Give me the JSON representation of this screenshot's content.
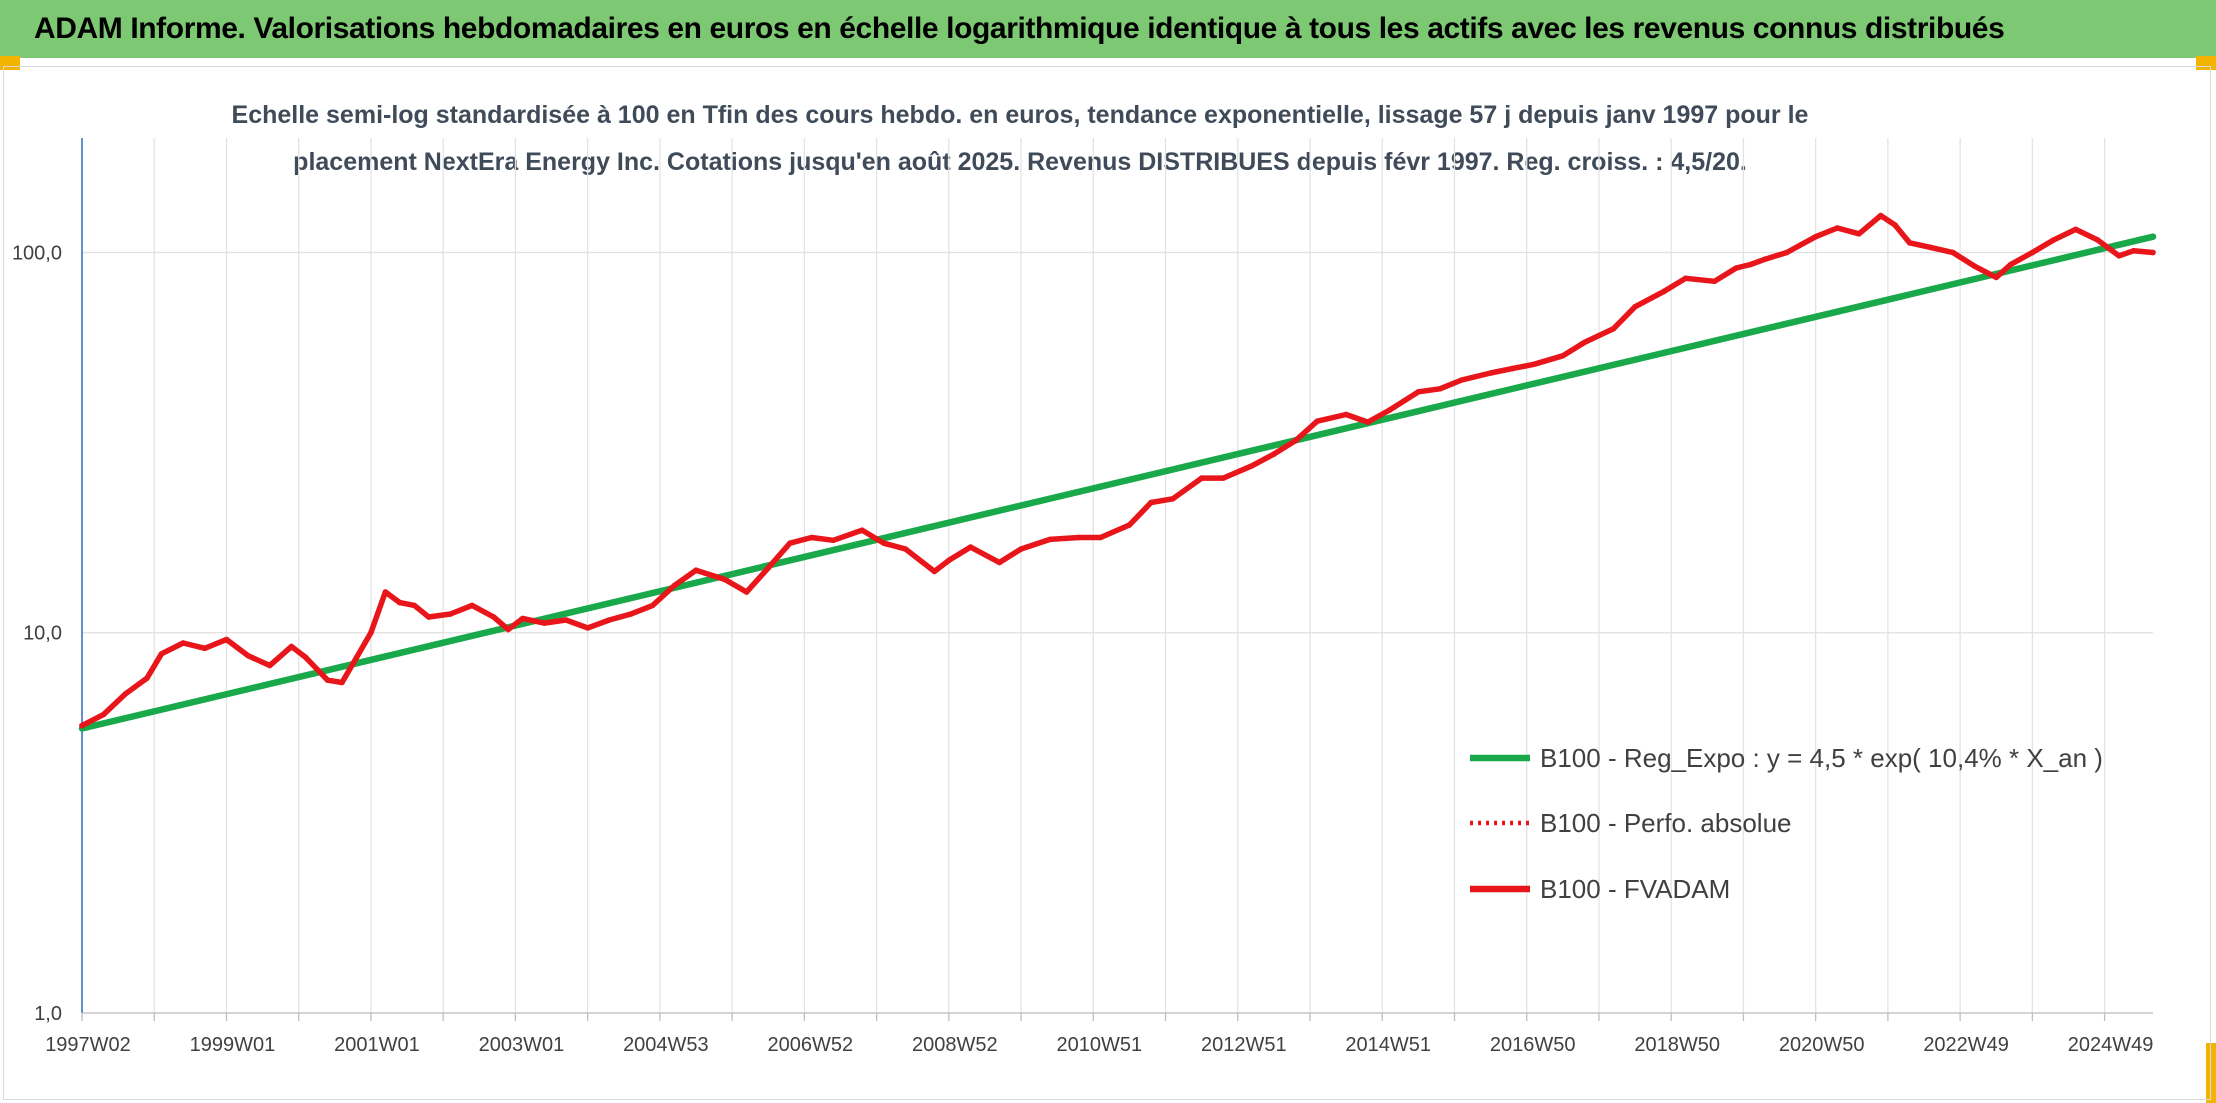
{
  "banner": {
    "title": "ADAM Informe. Valorisations hebdomadaires en euros en échelle logarithmique identique à tous les actifs avec les revenus connus distribués",
    "color": "#7dc872"
  },
  "chart_data": {
    "type": "line",
    "title_line1": "Echelle semi-log standardisée à 100 en Tfin des cours hebdo. en euros, tendance exponentielle, lissage 57 j depuis janv 1997 pour le",
    "title_line2": "placement NextEra Energy Inc. Cotations jusqu'en août 2025. Revenus DISTRIBUES depuis févr 1997. Reg. croiss. : 4,5/20.",
    "y_scale": "log",
    "ylim": [
      1,
      200
    ],
    "y_ticks": [
      {
        "value": 100,
        "label": "100,0"
      },
      {
        "value": 10,
        "label": "10,0"
      },
      {
        "value": 1,
        "label": "1,0"
      }
    ],
    "xlim": [
      1997.0,
      2025.67
    ],
    "x_ticks": [
      {
        "value": 1997.0,
        "label": "1997W02"
      },
      {
        "value": 1999.0,
        "label": "1999W01"
      },
      {
        "value": 2001.0,
        "label": "2001W01"
      },
      {
        "value": 2003.0,
        "label": "2003W01"
      },
      {
        "value": 2005.0,
        "label": "2004W53"
      },
      {
        "value": 2007.0,
        "label": "2006W52"
      },
      {
        "value": 2009.0,
        "label": "2008W52"
      },
      {
        "value": 2011.0,
        "label": "2010W51"
      },
      {
        "value": 2013.0,
        "label": "2012W51"
      },
      {
        "value": 2015.0,
        "label": "2014W51"
      },
      {
        "value": 2017.0,
        "label": "2016W50"
      },
      {
        "value": 2019.0,
        "label": "2018W50"
      },
      {
        "value": 2021.0,
        "label": "2020W50"
      },
      {
        "value": 2023.0,
        "label": "2022W49"
      },
      {
        "value": 2025.0,
        "label": "2024W49"
      }
    ],
    "grid": "vertical and horizontal",
    "legend_position": "bottom-right",
    "series": [
      {
        "name": "B100 - Reg_Expo : y = 4,5 * exp( 10,4% *  X_an )",
        "color": "#19a84a",
        "style": "solid",
        "x": [
          1997.0,
          2025.67
        ],
        "y": [
          5.6,
          110
        ]
      },
      {
        "name": "B100 - Perfo. absolue",
        "color": "#e8161b",
        "style": "dotted",
        "x": [],
        "y": []
      },
      {
        "name": "B100 - FVADAM",
        "color": "#e8161b",
        "style": "solid",
        "x": [
          1997.0,
          1997.3,
          1997.6,
          1997.9,
          1998.1,
          1998.4,
          1998.7,
          1999.0,
          1999.3,
          1999.6,
          1999.9,
          2000.1,
          2000.4,
          2000.6,
          2000.8,
          2001.0,
          2001.2,
          2001.4,
          2001.6,
          2001.8,
          2002.1,
          2002.4,
          2002.7,
          2002.9,
          2003.1,
          2003.4,
          2003.7,
          2004.0,
          2004.3,
          2004.6,
          2004.9,
          2005.2,
          2005.5,
          2005.9,
          2006.2,
          2006.5,
          2006.8,
          2007.1,
          2007.4,
          2007.8,
          2008.1,
          2008.4,
          2008.8,
          2009.0,
          2009.3,
          2009.7,
          2010.0,
          2010.4,
          2010.8,
          2011.1,
          2011.5,
          2011.8,
          2012.1,
          2012.5,
          2012.8,
          2013.2,
          2013.5,
          2013.8,
          2014.1,
          2014.5,
          2014.8,
          2015.1,
          2015.5,
          2015.8,
          2016.1,
          2016.5,
          2016.8,
          2017.1,
          2017.5,
          2017.8,
          2018.2,
          2018.5,
          2018.9,
          2019.2,
          2019.6,
          2019.9,
          2020.1,
          2020.3,
          2020.6,
          2021.0,
          2021.3,
          2021.6,
          2021.9,
          2022.1,
          2022.3,
          2022.6,
          2022.9,
          2023.2,
          2023.5,
          2023.7,
          2024.0,
          2024.3,
          2024.6,
          2024.9,
          2025.2,
          2025.4,
          2025.67
        ],
        "y": [
          5.7,
          6.1,
          6.9,
          7.6,
          8.8,
          9.4,
          9.1,
          9.6,
          8.7,
          8.2,
          9.2,
          8.6,
          7.5,
          7.4,
          8.6,
          10.0,
          12.8,
          12.0,
          11.8,
          11.0,
          11.2,
          11.8,
          11.0,
          10.2,
          10.9,
          10.6,
          10.8,
          10.3,
          10.8,
          11.2,
          11.8,
          13.3,
          14.6,
          13.8,
          12.8,
          14.8,
          17.2,
          17.8,
          17.5,
          18.6,
          17.2,
          16.6,
          14.5,
          15.5,
          16.8,
          15.3,
          16.6,
          17.6,
          17.8,
          17.8,
          19.2,
          22.0,
          22.5,
          25.5,
          25.5,
          27.5,
          29.5,
          32.0,
          36.0,
          37.5,
          35.8,
          38.5,
          43.0,
          43.8,
          46.2,
          48.2,
          49.5,
          50.8,
          53.5,
          58.0,
          63.0,
          72.0,
          79.0,
          85.5,
          84.0,
          91.0,
          93.0,
          96.0,
          100.0,
          110.0,
          116.0,
          112.0,
          125.0,
          118.0,
          106.0,
          103.0,
          100.0,
          92.0,
          86.0,
          93.0,
          100.0,
          108.0,
          115.0,
          108.0,
          98.0,
          101.0,
          100.0
        ]
      }
    ]
  }
}
